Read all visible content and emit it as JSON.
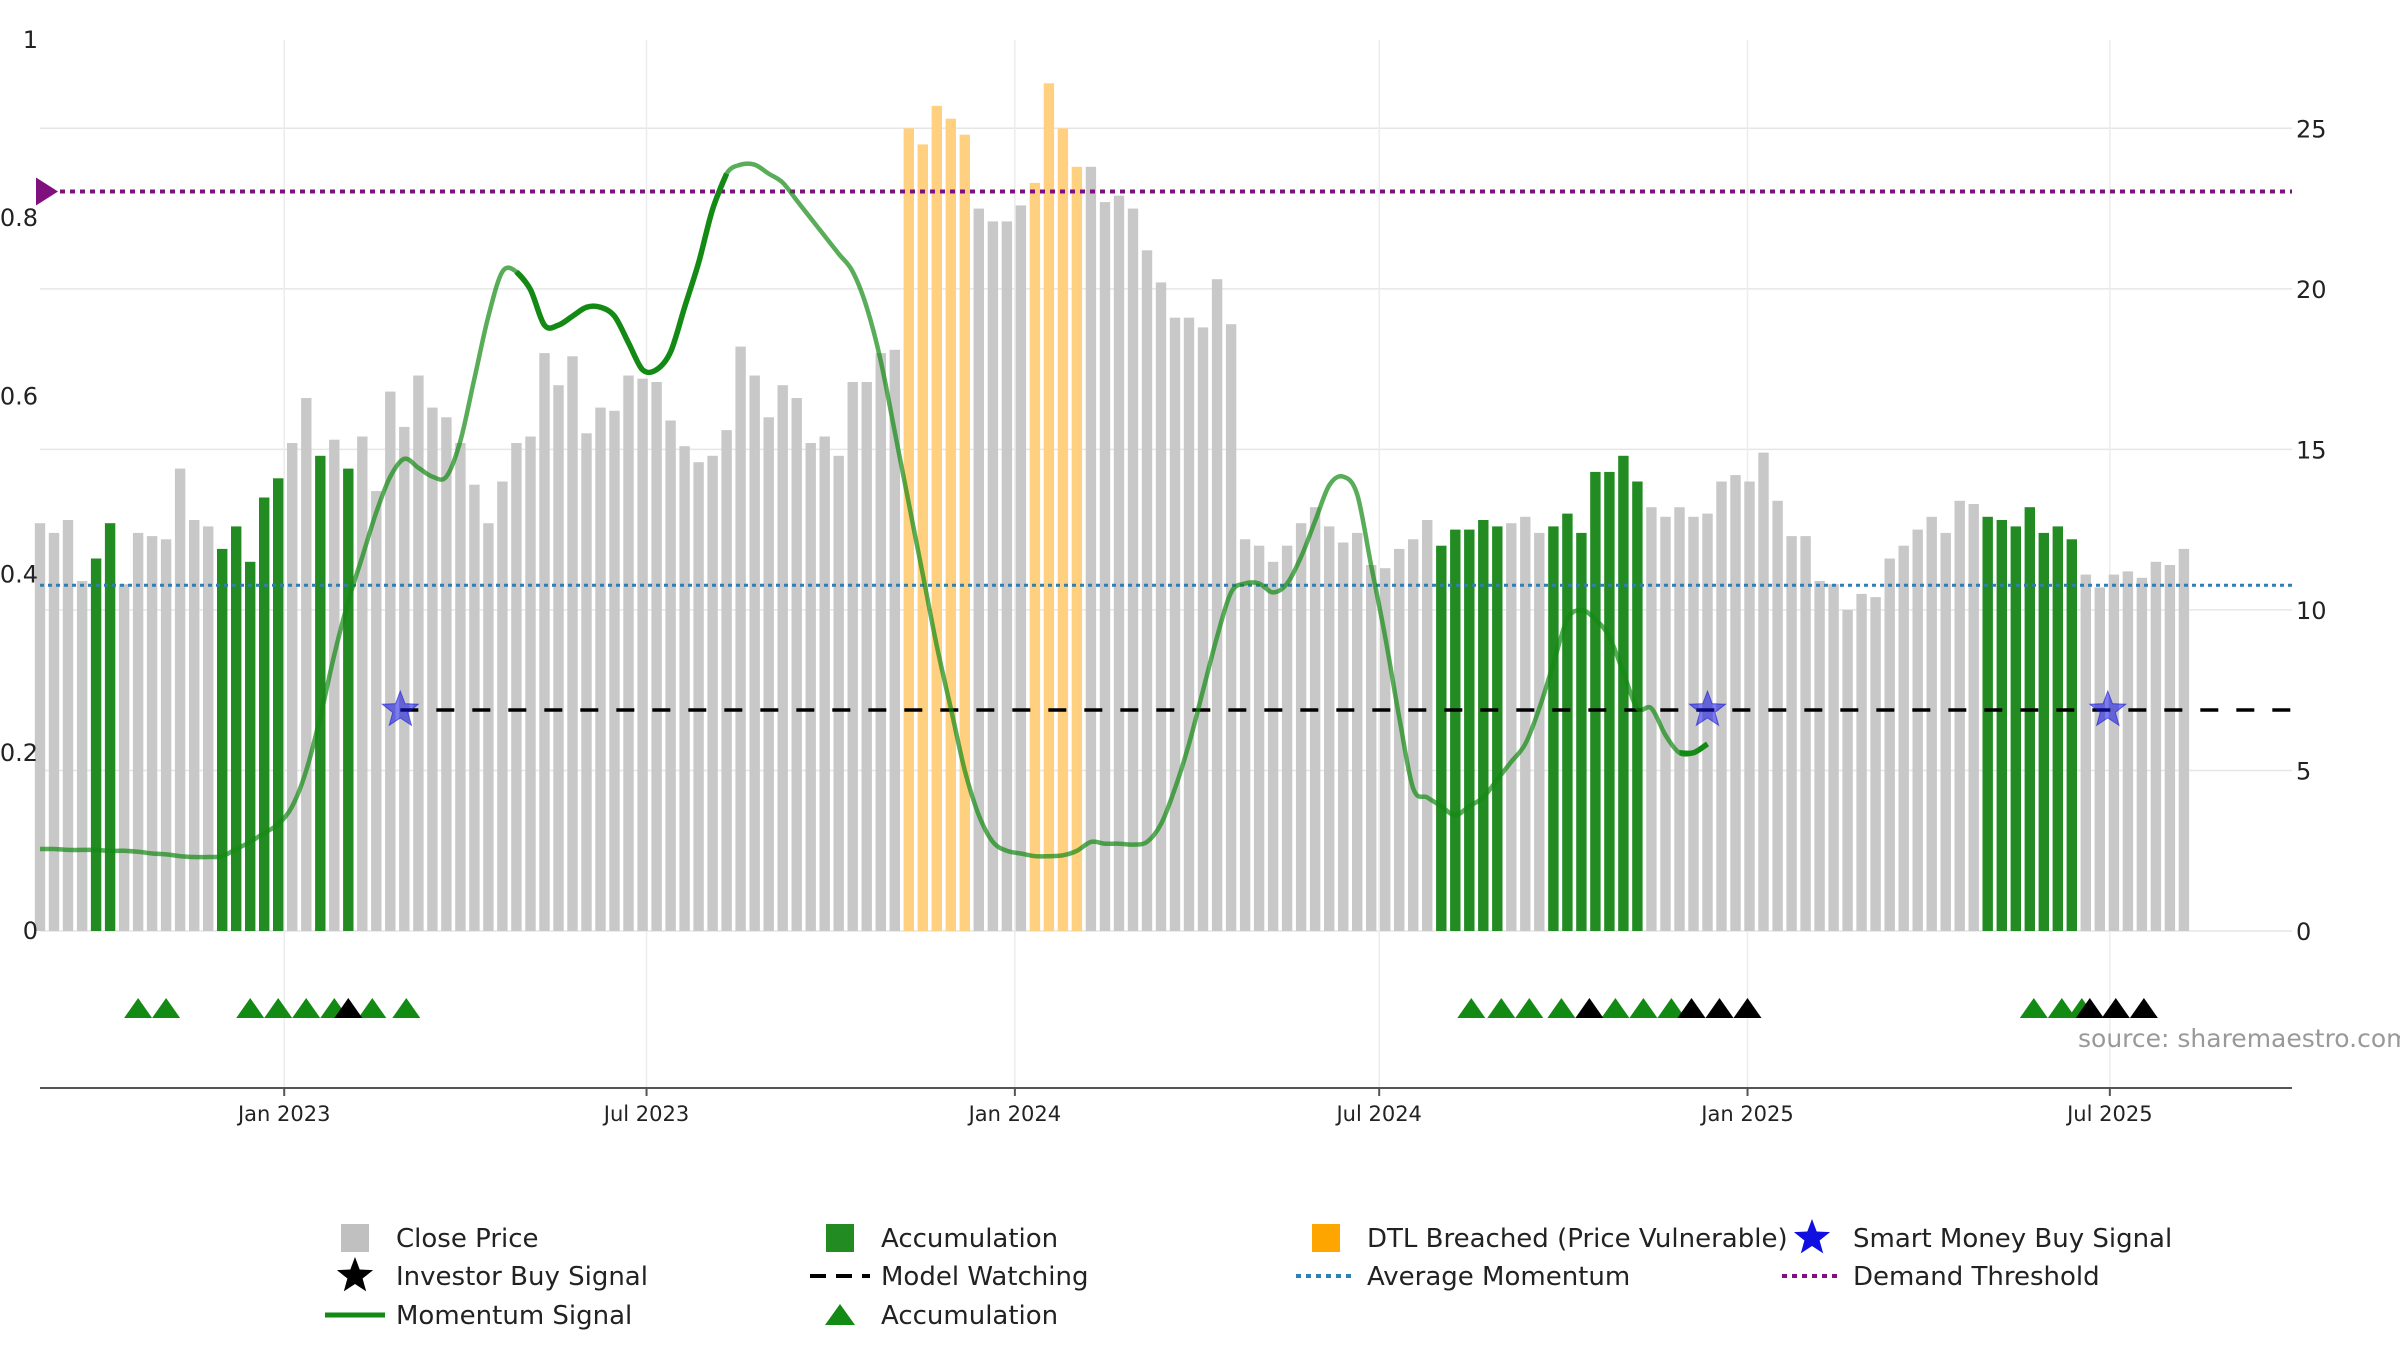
{
  "source_note": "source: sharemaestro.com",
  "chart_data": {
    "type": "bar",
    "left_axis": {
      "ticks": [
        "0",
        "0.2",
        "0.4",
        "0.6",
        "0.8",
        "1"
      ],
      "ylim": [
        0,
        1
      ]
    },
    "right_axis": {
      "ticks": [
        "0",
        "5",
        "10",
        "15",
        "20",
        "25"
      ],
      "ylim": [
        0,
        27.75
      ]
    },
    "x_axis": {
      "start": "2022-09-01",
      "end": "2025-09-30",
      "ticks": [
        {
          "date": "2023-01-01",
          "label": "Jan 2023"
        },
        {
          "date": "2023-07-01",
          "label": "Jul 2023"
        },
        {
          "date": "2024-01-01",
          "label": "Jan 2024"
        },
        {
          "date": "2024-07-01",
          "label": "Jul 2024"
        },
        {
          "date": "2025-01-01",
          "label": "Jan 2025"
        },
        {
          "date": "2025-07-01",
          "label": "Jul 2025"
        }
      ]
    },
    "weekly_bars": {
      "start": "2022-09-01",
      "step_days": 7,
      "close_price": [
        12.7,
        12.4,
        12.8,
        10.9,
        11.6,
        12.7,
        10.8,
        12.4,
        12.3,
        12.2,
        14.4,
        12.8,
        12.6,
        11.9,
        12.6,
        11.5,
        13.5,
        14.1,
        15.2,
        16.6,
        14.8,
        15.3,
        14.4,
        15.4,
        13.7,
        16.8,
        15.7,
        17.3,
        16.3,
        16.0,
        15.2,
        13.9,
        12.7,
        14.0,
        15.2,
        15.4,
        18.0,
        17.0,
        17.9,
        15.5,
        16.3,
        16.2,
        17.3,
        17.2,
        17.1,
        15.9,
        15.1,
        14.6,
        14.8,
        15.6,
        18.2,
        17.3,
        16.0,
        17.0,
        16.6,
        15.2,
        15.4,
        14.8,
        17.1,
        17.1,
        18.0,
        18.1,
        25.0,
        24.5,
        25.7,
        25.3,
        24.8,
        22.5,
        22.1,
        22.1,
        22.6,
        23.3,
        26.4,
        25.0,
        23.8,
        23.8,
        22.7,
        22.9,
        22.5,
        21.2,
        20.2,
        19.1,
        19.1,
        18.8,
        20.3,
        18.9,
        12.2,
        12.0,
        11.5,
        12.0,
        12.7,
        13.2,
        12.6,
        12.1,
        12.4,
        11.4,
        11.3,
        11.9,
        12.2,
        12.8,
        12.0,
        12.5,
        12.5,
        12.8,
        12.6,
        12.7,
        12.9,
        12.4,
        12.6,
        13.0,
        12.4,
        14.3,
        14.3,
        14.8,
        14.0,
        13.2,
        12.9,
        13.2,
        12.9,
        13.0,
        14.0,
        14.2,
        14.0,
        14.9,
        13.4,
        12.3,
        12.3,
        10.9,
        10.8,
        10.0,
        10.5,
        10.4,
        11.6,
        12.0,
        12.5,
        12.9,
        12.4,
        13.4,
        13.3,
        12.9,
        12.8,
        12.6,
        13.2,
        12.4,
        12.6,
        12.2,
        11.1,
        10.7,
        11.1,
        11.2,
        11.0,
        11.5,
        11.4,
        11.9
      ],
      "accumulation": [
        4,
        5,
        13,
        14,
        15,
        16,
        17,
        20,
        22,
        100,
        101,
        102,
        103,
        104,
        108,
        109,
        110,
        111,
        112,
        113,
        114,
        139,
        140,
        141,
        142,
        143,
        144,
        145
      ],
      "dtl_breached": [
        62,
        63,
        64,
        65,
        66,
        71,
        72,
        73,
        74
      ]
    },
    "momentum_signal": {
      "start": "2022-09-01",
      "step_days": 7,
      "values": [
        0.092,
        0.092,
        0.091,
        0.091,
        0.091,
        0.09,
        0.09,
        0.089,
        0.087,
        0.086,
        0.084,
        0.083,
        0.083,
        0.084,
        0.092,
        0.1,
        0.11,
        0.12,
        0.14,
        0.18,
        0.24,
        0.31,
        0.37,
        0.42,
        0.47,
        0.51,
        0.53,
        0.52,
        0.51,
        0.51,
        0.55,
        0.62,
        0.69,
        0.74,
        0.74,
        0.72,
        0.68,
        0.68,
        0.69,
        0.7,
        0.7,
        0.69,
        0.66,
        0.63,
        0.63,
        0.65,
        0.7,
        0.75,
        0.81,
        0.85,
        0.86,
        0.86,
        0.85,
        0.84,
        0.82,
        0.8,
        0.78,
        0.76,
        0.74,
        0.7,
        0.64,
        0.56,
        0.48,
        0.4,
        0.32,
        0.25,
        0.18,
        0.13,
        0.1,
        0.09,
        0.087,
        0.084,
        0.084,
        0.085,
        0.09,
        0.1,
        0.098,
        0.098,
        0.097,
        0.1,
        0.12,
        0.16,
        0.21,
        0.27,
        0.33,
        0.38,
        0.39,
        0.39,
        0.38,
        0.39,
        0.42,
        0.46,
        0.5,
        0.51,
        0.49,
        0.41,
        0.33,
        0.24,
        0.16,
        0.15,
        0.14,
        0.13,
        0.14,
        0.15,
        0.17,
        0.19,
        0.21,
        0.25,
        0.3,
        0.35,
        0.36,
        0.35,
        0.33,
        0.29,
        0.25,
        0.25,
        0.22,
        0.2,
        0.2,
        0.21
      ]
    },
    "momentum_highlighted_weeks": [
      [
        34,
        49
      ],
      [
        117,
        121
      ]
    ],
    "average_momentum": 0.388,
    "model_watching": 0.248,
    "demand_threshold": 0.83,
    "smart_money_buy_signals": [
      "2023-02-28",
      "2024-12-12",
      "2025-06-30"
    ],
    "event_markers": {
      "accumulation_triangles": [
        "2022-10-20",
        "2022-11-03",
        "2022-12-15",
        "2022-12-29",
        "2023-01-12",
        "2023-01-26",
        "2023-02-14",
        "2023-03-03",
        "2024-08-16",
        "2024-08-31",
        "2024-09-14",
        "2024-09-30",
        "2024-10-27",
        "2024-11-10",
        "2024-11-24",
        "2025-05-24",
        "2025-06-07",
        "2025-06-17"
      ],
      "investor_buy_triangles": [
        "2023-02-02",
        "2024-10-14",
        "2024-12-04",
        "2024-12-18",
        "2025-01-01",
        "2025-06-21",
        "2025-07-04",
        "2025-07-18"
      ]
    },
    "colors": {
      "close_price": "#c8c8c8",
      "accumulation": "#228b22",
      "dtl_breached": "#ffd080",
      "momentum": "#138a13",
      "average_momentum": "#2f7fb0",
      "model_watching": "#000000",
      "demand_threshold": "#80107f",
      "smart_money": "#1010e0",
      "accumulation_marker": "#138a13",
      "investor_marker": "#000000"
    },
    "legend": [
      {
        "label": "Close Price",
        "symbol": "square",
        "color": "#c0c0c0"
      },
      {
        "label": "Accumulation",
        "symbol": "square",
        "color": "#228b22"
      },
      {
        "label": "DTL Breached (Price Vulnerable)",
        "symbol": "square",
        "color": "#ffa500"
      },
      {
        "label": "Smart Money Buy Signal",
        "symbol": "star",
        "color": "#1010e0"
      },
      {
        "label": "Investor Buy Signal",
        "symbol": "star",
        "color": "#000000"
      },
      {
        "label": "Model Watching",
        "symbol": "dash",
        "color": "#000000"
      },
      {
        "label": "Average Momentum",
        "symbol": "dotted",
        "color": "#2f7fb0"
      },
      {
        "label": "Demand Threshold",
        "symbol": "dotted",
        "color": "#80107f"
      },
      {
        "label": "Momentum Signal",
        "symbol": "line",
        "color": "#138a13"
      },
      {
        "label": "Accumulation",
        "symbol": "triangle",
        "color": "#138a13"
      }
    ]
  }
}
